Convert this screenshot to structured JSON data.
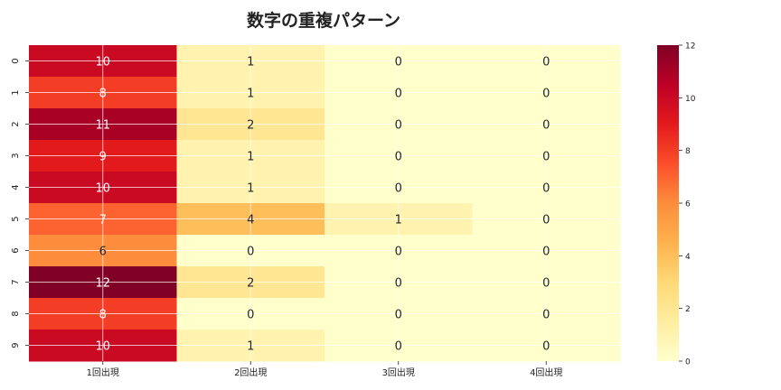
{
  "chart_data": {
    "type": "heatmap",
    "title": "数字の重複パターン",
    "xlabel": "",
    "ylabel": "",
    "x_categories": [
      "1回出現",
      "2回出現",
      "3回出現",
      "4回出現"
    ],
    "y_categories": [
      "0",
      "1",
      "2",
      "3",
      "4",
      "5",
      "6",
      "7",
      "8",
      "9"
    ],
    "values": [
      [
        10,
        1,
        0,
        0
      ],
      [
        8,
        1,
        0,
        0
      ],
      [
        11,
        2,
        0,
        0
      ],
      [
        9,
        1,
        0,
        0
      ],
      [
        10,
        1,
        0,
        0
      ],
      [
        7,
        4,
        1,
        0
      ],
      [
        6,
        0,
        0,
        0
      ],
      [
        12,
        2,
        0,
        0
      ],
      [
        8,
        0,
        0,
        0
      ],
      [
        10,
        1,
        0,
        0
      ]
    ],
    "vmin": 0,
    "vmax": 12,
    "colormap": "YlOrRd",
    "colorbar_ticks": [
      0,
      2,
      4,
      6,
      8,
      10,
      12
    ],
    "annotated": true,
    "grid": true
  }
}
